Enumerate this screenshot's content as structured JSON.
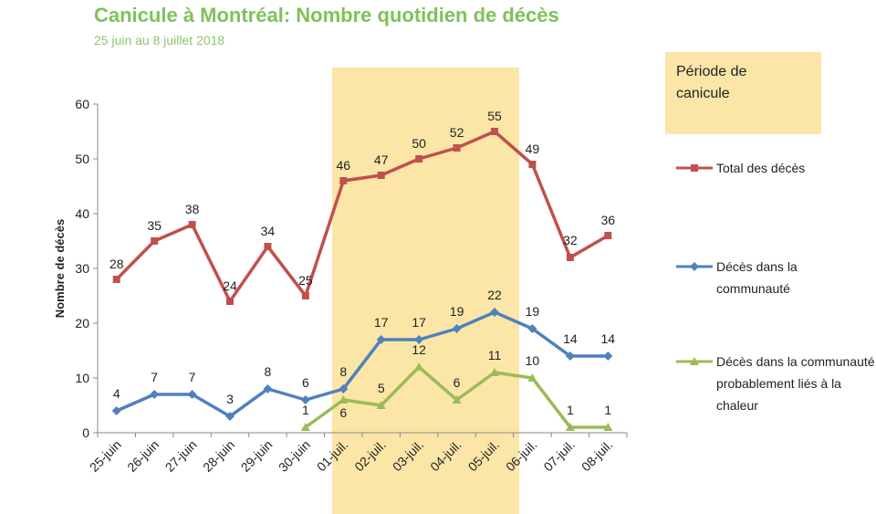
{
  "title": "Canicule à Montréal: Nombre quotidien de décès",
  "subtitle": "25 juin au 8 juillet 2018",
  "legend_heatwave": "Période de canicule",
  "colors": {
    "total": "#c0504d",
    "community": "#4f81bd",
    "heat": "#9bbb59",
    "heatwave_band": "#fbe6a8",
    "title": "#7dc25a"
  },
  "chart_data": {
    "type": "line",
    "ylabel": "Nombre de décès",
    "xlabel": "",
    "ylim": [
      0,
      60
    ],
    "yticks": [
      0,
      10,
      20,
      30,
      40,
      50,
      60
    ],
    "categories": [
      "25-juin",
      "26-juin",
      "27-juin",
      "28-juin",
      "29-juin",
      "30-juin",
      "01-juil.",
      "02-juil.",
      "03-juil.",
      "04-juil.",
      "05-juil.",
      "06-juil.",
      "07-juil.",
      "08-juil."
    ],
    "heatwave_range": [
      "01-juil.",
      "05-juil."
    ],
    "legend_placement": "right",
    "series": [
      {
        "name": "Total des décès",
        "key": "total",
        "marker": "square",
        "values": [
          28,
          35,
          38,
          24,
          34,
          25,
          46,
          47,
          50,
          52,
          55,
          49,
          32,
          36
        ]
      },
      {
        "name": "Décès dans la communauté",
        "key": "community",
        "marker": "diamond",
        "values": [
          4,
          7,
          7,
          3,
          8,
          6,
          8,
          17,
          17,
          19,
          22,
          19,
          14,
          14
        ]
      },
      {
        "name": "Décès dans la communauté probablement liés à la chaleur",
        "key": "heat",
        "marker": "triangle",
        "values": [
          null,
          null,
          null,
          null,
          null,
          1,
          6,
          5,
          12,
          6,
          11,
          10,
          1,
          1
        ]
      }
    ]
  }
}
